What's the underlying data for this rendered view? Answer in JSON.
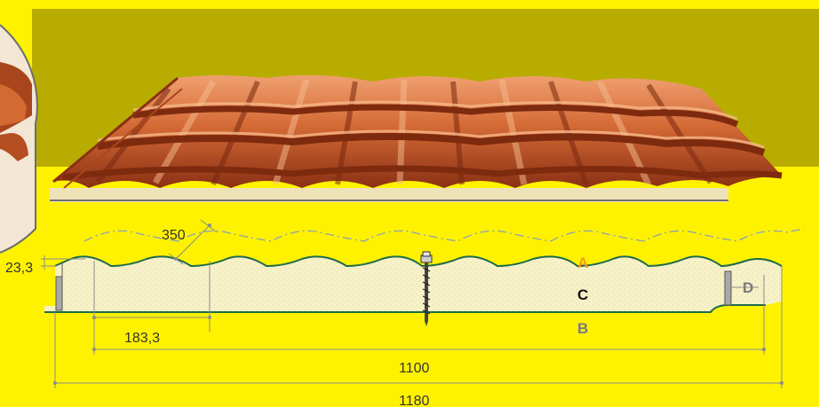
{
  "dimensions": {
    "pitch": "350",
    "profile_height": "23,3",
    "step": "183,3",
    "useful_width": "1100",
    "total_width": "1180"
  },
  "layers": {
    "a": "A",
    "c": "C",
    "b": "B",
    "d": "D"
  },
  "colors": {
    "background": "#FFF200",
    "panel": "#B9AC00",
    "tile": "#C4582A",
    "foam": "#F7F1C8",
    "profile_line": "#1E6B4A",
    "label_a": "#F29B1F",
    "label_c": "#111111",
    "label_b": "#7A7A7A",
    "dim_line": "#8C8C8C"
  }
}
